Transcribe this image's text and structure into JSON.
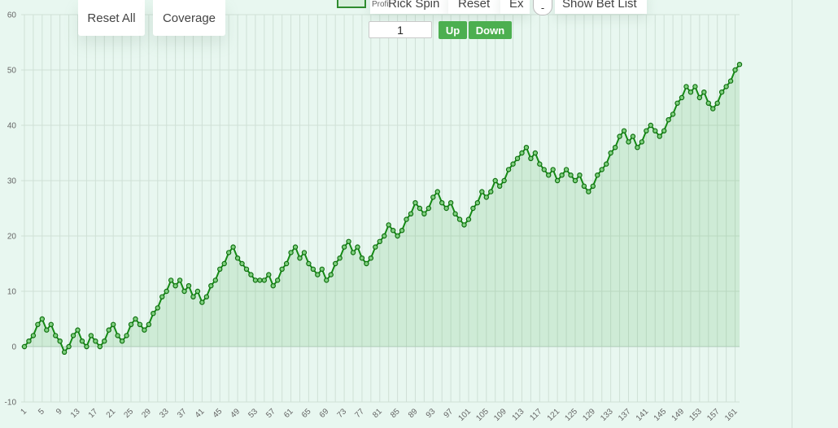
{
  "toolbar": {
    "reset_all_label": "Reset All",
    "coverage_label": "Coverage",
    "legend_label": "Profit",
    "strip1_label": "Rick Spin",
    "strip2_label": "Reset",
    "strip3_label": "Ex",
    "minus_label": "-",
    "strip4_label": "Show Bet List"
  },
  "stepper": {
    "value": "1",
    "up_label": "Up",
    "down_label": "Down"
  },
  "colors": {
    "line": "#148a14",
    "fill": "#4caf50",
    "accent": "#4caf50"
  },
  "chart_data": {
    "type": "area",
    "title": "",
    "xlabel": "",
    "ylabel": "",
    "ylim": [
      -10,
      60
    ],
    "yticks": [
      -10,
      0,
      10,
      20,
      30,
      40,
      50,
      60
    ],
    "xtick_labels": [
      "1",
      "5",
      "9",
      "13",
      "17",
      "21",
      "25",
      "29",
      "33",
      "37",
      "41",
      "45",
      "49",
      "53",
      "57",
      "61",
      "65",
      "69",
      "73",
      "77",
      "81",
      "85",
      "89",
      "93",
      "97",
      "101",
      "105",
      "109",
      "113",
      "117",
      "121",
      "125",
      "129",
      "133",
      "137",
      "141",
      "145",
      "149",
      "153",
      "157",
      "161"
    ],
    "grid": true,
    "series": [
      {
        "name": "Profit",
        "x_start": 1,
        "values": [
          0,
          1,
          2,
          4,
          5,
          3,
          4,
          2,
          1,
          -1,
          0,
          2,
          3,
          1,
          0,
          2,
          1,
          0,
          1,
          3,
          4,
          2,
          1,
          2,
          4,
          5,
          4,
          3,
          4,
          6,
          7,
          9,
          10,
          12,
          11,
          12,
          10,
          11,
          9,
          10,
          8,
          9,
          11,
          12,
          14,
          15,
          17,
          18,
          16,
          15,
          14,
          13,
          12,
          12,
          12,
          13,
          11,
          12,
          14,
          15,
          17,
          18,
          16,
          17,
          15,
          14,
          13,
          14,
          12,
          13,
          15,
          16,
          18,
          19,
          17,
          18,
          16,
          15,
          16,
          18,
          19,
          20,
          22,
          21,
          20,
          21,
          23,
          24,
          26,
          25,
          24,
          25,
          27,
          28,
          26,
          25,
          26,
          24,
          23,
          22,
          23,
          25,
          26,
          28,
          27,
          28,
          30,
          29,
          30,
          32,
          33,
          34,
          35,
          36,
          34,
          35,
          33,
          32,
          31,
          32,
          30,
          31,
          32,
          31,
          30,
          31,
          29,
          28,
          29,
          31,
          32,
          33,
          35,
          36,
          38,
          39,
          37,
          38,
          36,
          37,
          39,
          40,
          39,
          38,
          39,
          41,
          42,
          44,
          45,
          47,
          46,
          47,
          45,
          46,
          44,
          43,
          44,
          46,
          47,
          48,
          50,
          51
        ]
      }
    ]
  }
}
